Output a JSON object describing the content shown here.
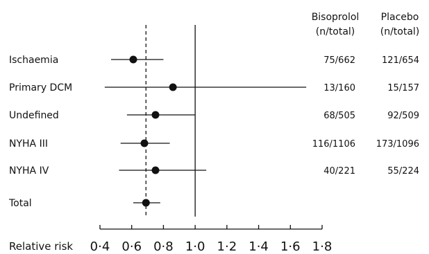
{
  "chart_data": {
    "type": "forest",
    "xlabel": "Relative risk",
    "x_ticks": [
      "0·4",
      "0·6",
      "0·8",
      "1·0",
      "1·2",
      "1·4",
      "1·6",
      "1·8"
    ],
    "x_tick_values": [
      0.4,
      0.6,
      0.8,
      1.0,
      1.2,
      1.4,
      1.6,
      1.8
    ],
    "xlim": [
      0.4,
      1.8
    ],
    "reference_line": 1.0,
    "overall_line": 0.69,
    "columns": [
      {
        "title": "Bisoprolol",
        "subtitle": "(n/total)"
      },
      {
        "title": "Placebo",
        "subtitle": "(n/total)"
      }
    ],
    "rows": [
      {
        "label": "Ischaemia",
        "estimate": 0.61,
        "ci_low": 0.47,
        "ci_high": 0.8,
        "bisoprolol": "75/662",
        "placebo": "121/654"
      },
      {
        "label": "Primary DCM",
        "estimate": 0.86,
        "ci_low": 0.43,
        "ci_high": 1.7,
        "bisoprolol": "13/160",
        "placebo": "15/157"
      },
      {
        "label": "Undefined",
        "estimate": 0.75,
        "ci_low": 0.57,
        "ci_high": 1.0,
        "bisoprolol": "68/505",
        "placebo": "92/509"
      },
      {
        "label": "NYHA III",
        "estimate": 0.68,
        "ci_low": 0.53,
        "ci_high": 0.84,
        "bisoprolol": "116/1106",
        "placebo": "173/1096"
      },
      {
        "label": "NYHA IV",
        "estimate": 0.75,
        "ci_low": 0.52,
        "ci_high": 1.07,
        "bisoprolol": "40/221",
        "placebo": "55/224"
      },
      {
        "label": "Total",
        "estimate": 0.69,
        "ci_low": 0.61,
        "ci_high": 0.78,
        "bisoprolol": "",
        "placebo": ""
      }
    ]
  }
}
